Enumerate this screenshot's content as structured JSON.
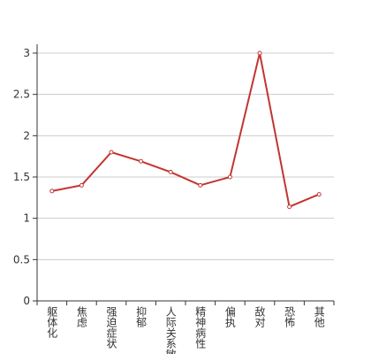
{
  "chart_data": {
    "type": "line",
    "categories": [
      "躯体化",
      "焦虑",
      "强迫症状",
      "抑郁",
      "人际关系敏感",
      "精神病性",
      "偏执",
      "敌对",
      "恐怖",
      "其他"
    ],
    "series": [
      {
        "color": "#c23531",
        "values": [
          1.33,
          1.4,
          1.8,
          1.69,
          1.56,
          1.4,
          1.5,
          3.0,
          1.14,
          1.29
        ]
      }
    ],
    "ylim": [
      0,
      3
    ],
    "yticks": [
      0,
      0.5,
      1,
      1.5,
      2,
      2.5,
      3
    ],
    "grid": true
  }
}
